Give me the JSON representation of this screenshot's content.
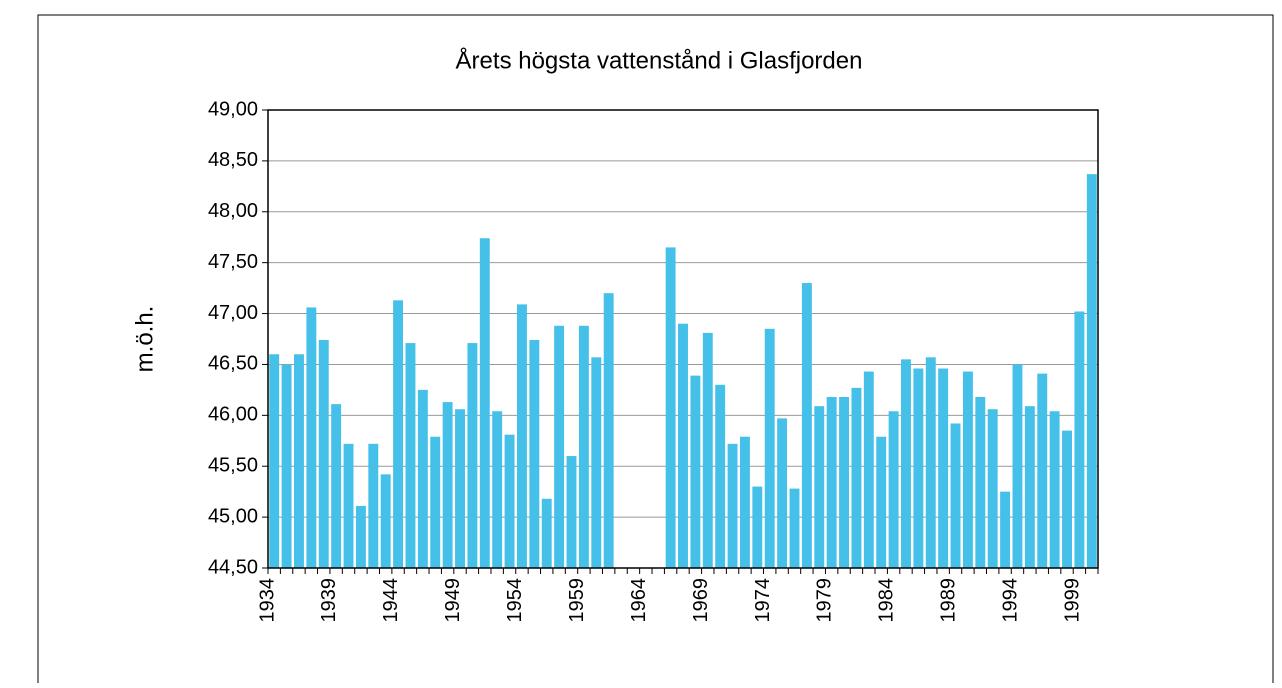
{
  "chart_data": {
    "type": "bar",
    "title": "Årets högsta vattenstånd i Glasfjorden",
    "y_label": "m.ö.h.",
    "categories": [
      "1934",
      null,
      null,
      null,
      null,
      "1939",
      null,
      null,
      null,
      null,
      "1944",
      null,
      null,
      null,
      null,
      "1949",
      null,
      null,
      null,
      null,
      "1954",
      null,
      null,
      null,
      null,
      "1959",
      null,
      null,
      null,
      null,
      "1964",
      null,
      null,
      null,
      null,
      "1969",
      null,
      null,
      null,
      null,
      "1974",
      null,
      null,
      null,
      null,
      "1979",
      null,
      null,
      null,
      null,
      "1984",
      null,
      null,
      null,
      null,
      "1989",
      null,
      null,
      null,
      null,
      "1994",
      null,
      null,
      null,
      null,
      "1999",
      null
    ],
    "values": [
      46.6,
      46.5,
      46.6,
      47.06,
      46.74,
      46.11,
      45.72,
      45.11,
      45.72,
      45.42,
      47.13,
      46.71,
      46.25,
      45.79,
      46.13,
      46.06,
      46.71,
      47.74,
      46.04,
      45.81,
      47.09,
      46.74,
      45.18,
      46.88,
      45.6,
      46.88,
      46.57,
      47.2,
      null,
      null,
      null,
      null,
      47.65,
      46.9,
      46.39,
      46.81,
      46.3,
      45.72,
      45.79,
      45.3,
      46.85,
      45.97,
      45.28,
      47.3,
      46.09,
      46.18,
      46.18,
      46.27,
      46.43,
      45.79,
      46.04,
      46.55,
      46.46,
      46.57,
      46.46,
      45.92,
      46.43,
      46.18,
      46.06,
      45.25,
      46.5,
      46.09,
      46.41,
      46.04,
      45.85,
      47.02,
      48.37
    ],
    "color": "#45c0e8",
    "ylim": [
      44.5,
      49.0
    ],
    "yticks": [
      {
        "value": 44.5,
        "label": "44,50"
      },
      {
        "value": 45.0,
        "label": "45,00"
      },
      {
        "value": 45.5,
        "label": "45,50"
      },
      {
        "value": 46.0,
        "label": "46,00"
      },
      {
        "value": 46.5,
        "label": "46,50"
      },
      {
        "value": 47.0,
        "label": "47,00"
      },
      {
        "value": 47.5,
        "label": "47,50"
      },
      {
        "value": 48.0,
        "label": "48,00"
      },
      {
        "value": 48.5,
        "label": "48,50"
      },
      {
        "value": 49.0,
        "label": "49,00"
      }
    ],
    "grid": true
  }
}
